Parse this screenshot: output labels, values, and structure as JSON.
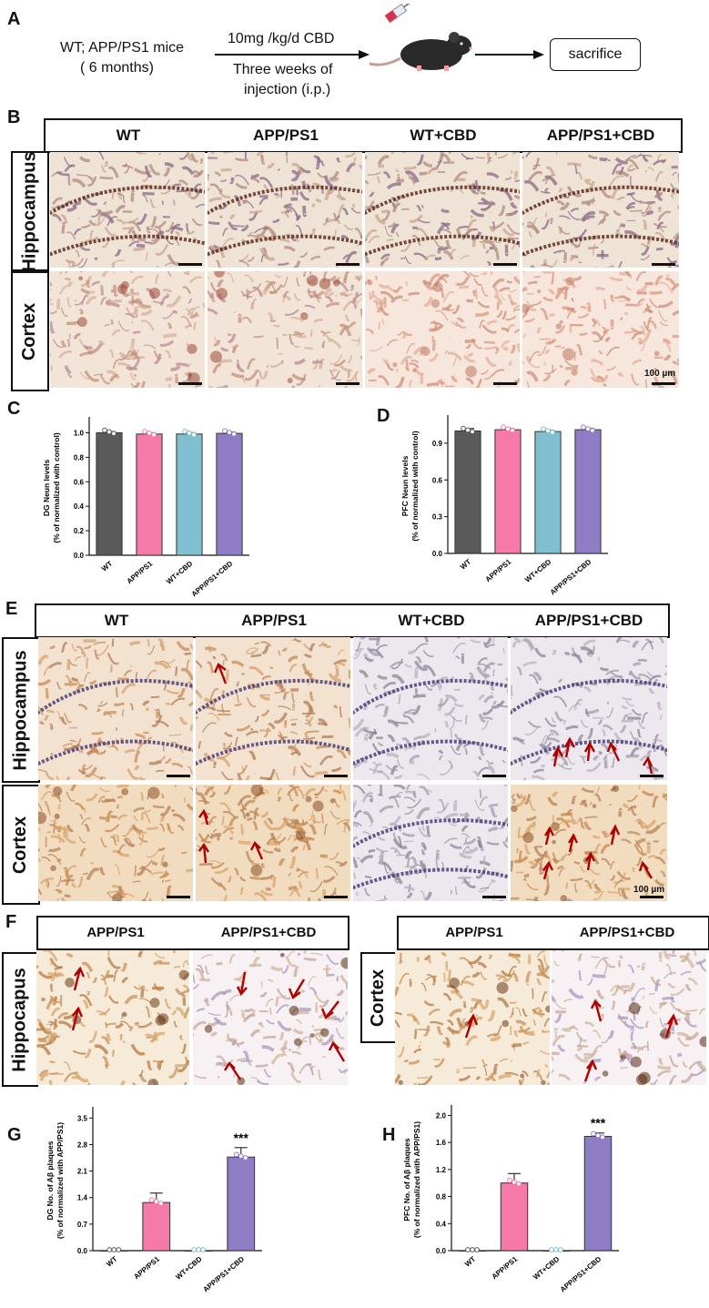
{
  "panel_labels": {
    "a": "A",
    "b": "B",
    "c": "C",
    "d": "D",
    "e": "E",
    "f": "F",
    "g": "G",
    "h": "H"
  },
  "panel_a": {
    "group": "WT; APP/PS1 mice",
    "age": "( 6 months)",
    "dose": "10mg /kg/d  CBD",
    "duration": "Three weeks of",
    "route": "injection (i.p.)",
    "endpoint": "sacrifice"
  },
  "groups": [
    "WT",
    "APP/PS1",
    "WT+CBD",
    "APP/PS1+CBD"
  ],
  "regions": {
    "hippocampus": "Hippocampus",
    "cortex": "Cortex",
    "hippocapus": "Hippocapus"
  },
  "scale_label": "100 µm",
  "panel_f": {
    "left_cols": [
      "APP/PS1",
      "APP/PS1+CBD"
    ],
    "right_cols": [
      "APP/PS1",
      "APP/PS1+CBD"
    ]
  },
  "colors": {
    "WT": "#5a5a5a",
    "APP/PS1": "#f57aa8",
    "WT+CBD": "#7fbfd0",
    "APP/PS1+CBD": "#8e7cc4",
    "arrow": "#b00000"
  },
  "chart_data": [
    {
      "type": "bar",
      "id": "C",
      "categories": [
        "WT",
        "APP/PS1",
        "WT+CBD",
        "APP/PS1+CBD"
      ],
      "values": [
        1.0,
        0.99,
        0.99,
        0.995
      ],
      "errors": [
        0.01,
        0.01,
        0.01,
        0.01
      ],
      "ylabel_lines": [
        "DG Neun levels",
        "(% of normalized with control)"
      ],
      "yticks": [
        "0.0",
        "0.2",
        "0.4",
        "0.6",
        "0.8",
        "1.0"
      ],
      "ylim": [
        0,
        1.1
      ],
      "annotations": [
        "",
        "",
        "",
        ""
      ]
    },
    {
      "type": "bar",
      "id": "D",
      "categories": [
        "WT",
        "APP/PS1",
        "WT+CBD",
        "APP/PS1+CBD"
      ],
      "values": [
        1.0,
        1.01,
        0.995,
        1.01
      ],
      "errors": [
        0.02,
        0.01,
        0.01,
        0.01
      ],
      "ylabel_lines": [
        "PFC Neun levels",
        "(% of normalized with control)"
      ],
      "yticks": [
        "0.0",
        "0.3",
        "0.6",
        "0.9"
      ],
      "ylim": [
        0,
        1.1
      ],
      "annotations": [
        "",
        "",
        "",
        ""
      ]
    },
    {
      "type": "bar",
      "id": "G",
      "categories": [
        "WT",
        "APP/PS1",
        "WT+CBD",
        "APP/PS1+CBD"
      ],
      "values": [
        0.0,
        1.27,
        0.0,
        2.47
      ],
      "errors": [
        0.0,
        0.25,
        0.0,
        0.25
      ],
      "ylabel_lines": [
        "DG No. of Aβ plaques",
        "(% of normalized with APP/PS1)"
      ],
      "yticks": [
        "0.0",
        "0.7",
        "1.4",
        "2.1",
        "2.8",
        "3.5"
      ],
      "ylim": [
        0,
        3.7
      ],
      "annotations": [
        "",
        "",
        "",
        "***"
      ]
    },
    {
      "type": "bar",
      "id": "H",
      "categories": [
        "WT",
        "APP/PS1",
        "WT+CBD",
        "APP/PS1+CBD"
      ],
      "values": [
        0.0,
        1.0,
        0.0,
        1.69
      ],
      "errors": [
        0.0,
        0.14,
        0.0,
        0.05
      ],
      "ylabel_lines": [
        "PFC No. of Aβ plaques",
        "(% of normalized with APP/PS1)"
      ],
      "yticks": [
        "0.0",
        "0.4",
        "0.8",
        "1.2",
        "1.6",
        "2.0"
      ],
      "ylim": [
        0,
        2.1
      ],
      "annotations": [
        "",
        "",
        "",
        "***"
      ]
    }
  ]
}
